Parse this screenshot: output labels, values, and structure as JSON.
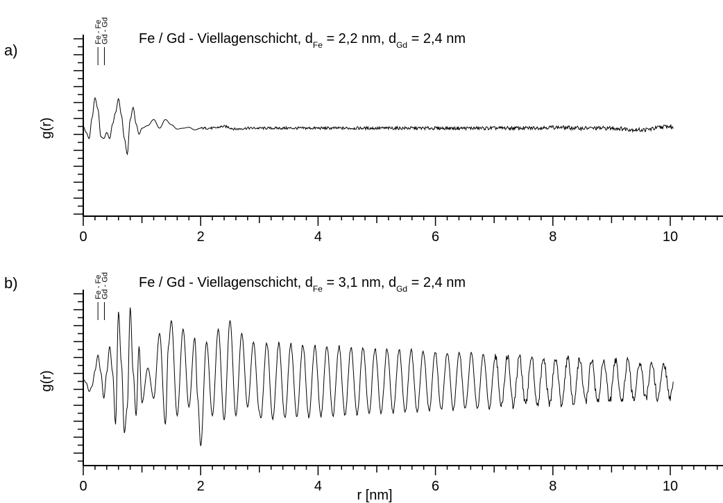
{
  "chart_data": [
    {
      "type": "line",
      "panel_label": "a)",
      "title": "Fe / Gd - Viellagenschicht, d_Fe = 2,2 nm, d_Gd = 2,4 nm",
      "title_parts": {
        "prefix": "Fe / Gd - Viellagenschicht, d",
        "sub1": "Fe",
        "mid": " = 2,2 nm, d",
        "sub2": "Gd",
        "suffix": " = 2,4 nm"
      },
      "xlabel": "",
      "ylabel": "g(r)",
      "xlim": [
        0,
        11
      ],
      "ylim": [
        -1,
        1
      ],
      "x_ticks": [
        0,
        2,
        4,
        6,
        8,
        10
      ],
      "x_tick_labels": [
        "0",
        "2",
        "4",
        "6",
        "8",
        "10"
      ],
      "y_tick_labels_shown": false,
      "markers": [
        {
          "label": "Fe - Fe",
          "x": 0.25
        },
        {
          "label": "Gd - Gd",
          "x": 0.36
        }
      ],
      "series": [
        {
          "x": [
            0.0,
            0.05,
            0.1,
            0.15,
            0.2,
            0.25,
            0.3,
            0.35,
            0.4,
            0.45,
            0.5,
            0.55,
            0.6,
            0.65,
            0.7,
            0.75,
            0.8,
            0.85,
            0.9,
            0.95,
            1.0,
            1.1,
            1.2,
            1.3,
            1.4,
            1.5,
            1.6,
            1.7,
            1.8,
            1.9,
            2.0,
            2.2,
            2.4,
            2.6,
            2.8,
            3.0,
            3.5,
            4.0,
            4.5,
            5.0,
            5.5,
            6.0,
            6.5,
            7.0,
            7.5,
            8.0,
            8.5,
            9.0,
            9.5,
            10.0,
            10.05
          ],
          "y": [
            0.02,
            -0.05,
            -0.12,
            0.12,
            0.35,
            0.22,
            -0.1,
            -0.12,
            -0.05,
            -0.12,
            0.05,
            0.18,
            0.34,
            0.15,
            -0.12,
            -0.3,
            0.1,
            0.24,
            0.05,
            -0.07,
            0.0,
            0.03,
            0.1,
            0.0,
            0.1,
            0.04,
            -0.01,
            0.0,
            0.01,
            -0.02,
            0.0,
            0.0,
            0.02,
            -0.01,
            0.0,
            0.0,
            0.0,
            0.0,
            0.0,
            0.0,
            0.0,
            0.0,
            0.0,
            0.0,
            0.0,
            0.01,
            0.0,
            0.0,
            -0.02,
            0.02,
            0.0
          ]
        }
      ]
    },
    {
      "type": "line",
      "panel_label": "b)",
      "title": "Fe / Gd - Viellagenschicht, d_Fe = 3,1 nm, d_Gd = 2,4 nm",
      "title_parts": {
        "prefix": "Fe / Gd - Viellagenschicht, d",
        "sub1": "Fe",
        "mid": " = 3,1 nm, d",
        "sub2": "Gd",
        "suffix": " = 2,4 nm"
      },
      "xlabel": "r [nm]",
      "ylabel": "g(r)",
      "xlim": [
        0,
        11
      ],
      "ylim": [
        -1,
        1
      ],
      "x_ticks": [
        0,
        2,
        4,
        6,
        8,
        10
      ],
      "x_tick_labels": [
        "0",
        "2",
        "4",
        "6",
        "8",
        "10"
      ],
      "y_tick_labels_shown": false,
      "markers": [
        {
          "label": "Fe - Fe",
          "x": 0.25
        },
        {
          "label": "Gd - Gd",
          "x": 0.36
        }
      ],
      "series": [
        {
          "x": [
            0.0,
            0.05,
            0.1,
            0.15,
            0.2,
            0.25,
            0.3,
            0.35,
            0.4,
            0.45,
            0.5,
            0.55,
            0.6,
            0.65,
            0.7,
            0.75,
            0.8,
            0.85,
            0.9,
            0.95,
            1.0,
            1.1,
            1.2,
            1.3,
            1.4,
            1.45,
            1.5,
            1.6,
            1.7,
            1.8,
            1.9,
            1.95,
            2.0,
            2.1,
            2.2,
            2.3,
            2.4,
            2.5,
            2.6,
            2.7,
            2.8,
            2.9,
            3.0,
            3.2,
            3.4,
            3.6,
            3.8,
            4.0,
            4.3,
            4.6,
            4.9,
            5.2,
            5.5,
            5.8,
            6.1,
            6.4,
            6.7,
            7.0,
            7.3,
            7.6,
            7.9,
            8.2,
            8.5,
            8.8,
            9.1,
            9.4,
            9.7,
            10.0,
            10.05
          ],
          "y": [
            0.02,
            -0.02,
            -0.12,
            -0.06,
            0.12,
            0.3,
            0.1,
            -0.2,
            0.1,
            0.4,
            0.1,
            -0.5,
            0.8,
            0.2,
            -0.6,
            -0.3,
            0.85,
            0.1,
            -0.4,
            0.4,
            -0.25,
            0.15,
            -0.2,
            0.55,
            -0.5,
            0.4,
            0.7,
            -0.4,
            0.6,
            -0.3,
            0.5,
            -0.2,
            -0.75,
            0.45,
            -0.4,
            0.6,
            -0.45,
            0.7,
            -0.4,
            0.55,
            -0.3,
            0.45,
            -0.35,
            0.45,
            -0.35,
            0.42,
            -0.3,
            0.4,
            -0.28,
            0.35,
            -0.25,
            0.35,
            -0.22,
            0.32,
            -0.2,
            0.3,
            -0.18,
            0.22,
            -0.15,
            0.2,
            -0.15,
            0.18,
            -0.12,
            0.15,
            -0.12,
            0.12,
            -0.1,
            0.15,
            -0.18
          ]
        }
      ]
    }
  ]
}
